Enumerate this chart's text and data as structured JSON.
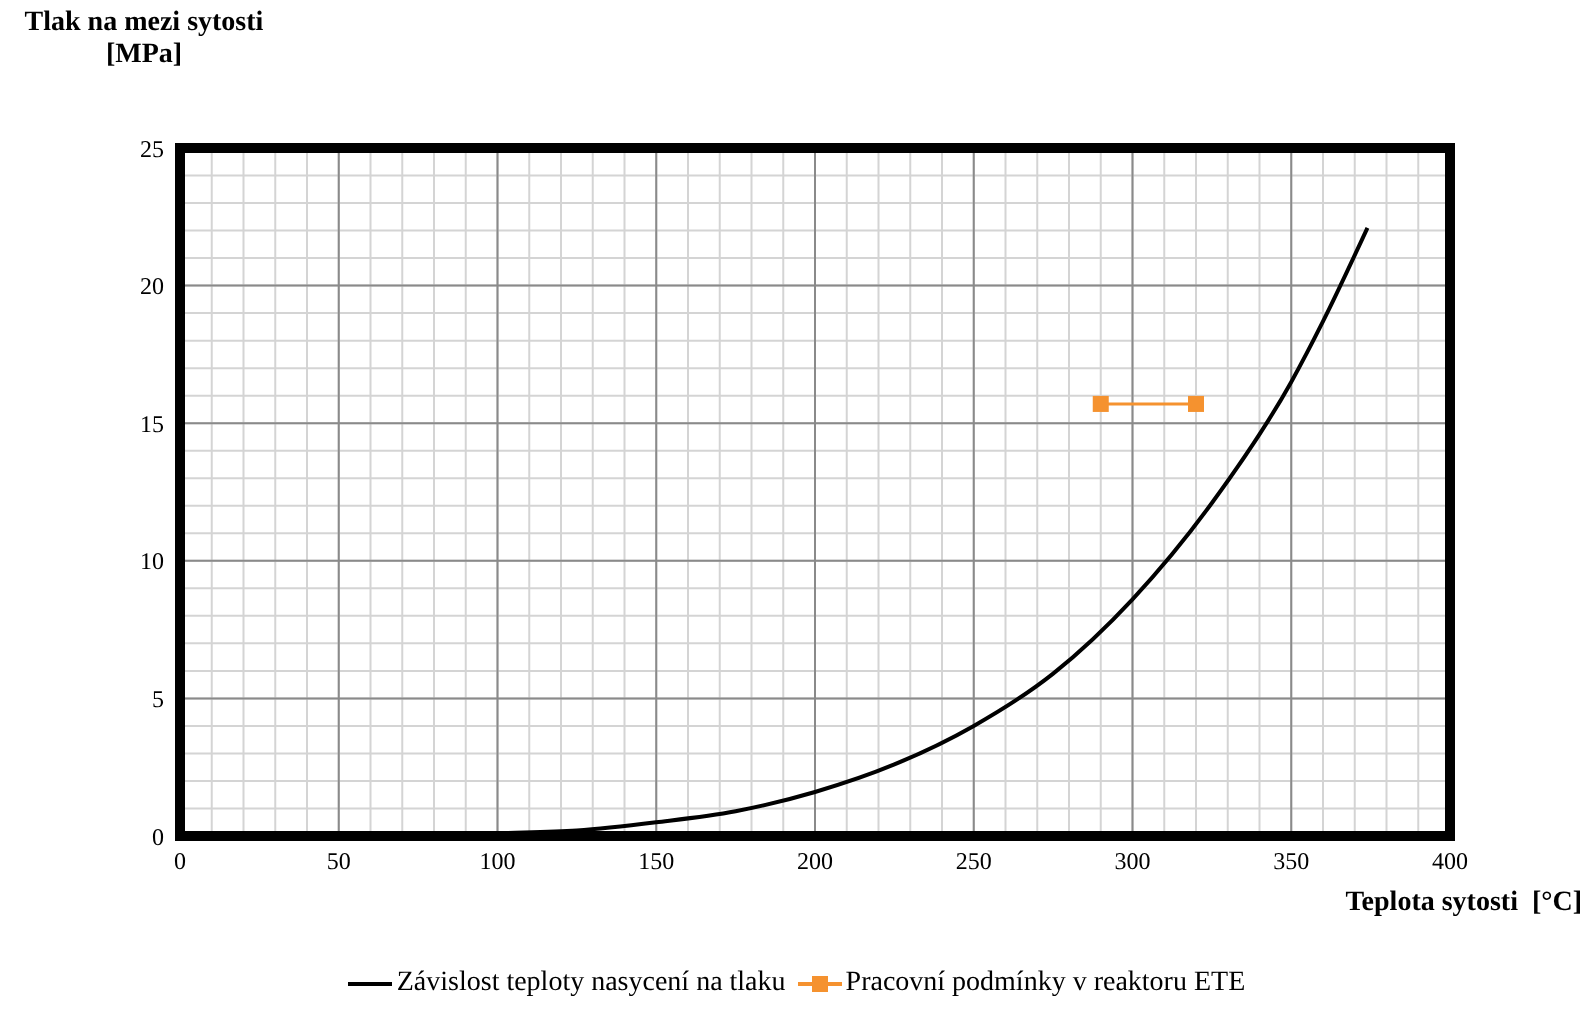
{
  "chart_data": {
    "type": "line",
    "xlabel": "Teplota sytosti  [°C]",
    "ylabel": "Tlak na mezi sytosti [MPa]",
    "xlim": [
      0,
      400
    ],
    "ylim": [
      0,
      25
    ],
    "xticks": [
      0,
      {
        "value": 10,
        "label": null
      },
      {
        "value": 20,
        "label": null
      },
      {
        "value": 30,
        "label": null
      },
      {
        "value": 40,
        "label": null
      },
      50,
      {
        "value": 60,
        "label": null
      },
      {
        "value": 70,
        "label": null
      },
      {
        "value": 80,
        "label": null
      },
      {
        "value": 90,
        "label": null
      },
      100,
      {
        "value": 110,
        "label": null
      },
      {
        "value": 120,
        "label": null
      },
      {
        "value": 130,
        "label": null
      },
      {
        "value": 140,
        "label": null
      },
      150,
      {
        "value": 160,
        "label": null
      },
      {
        "value": 170,
        "label": null
      },
      {
        "value": 180,
        "label": null
      },
      {
        "value": 190,
        "label": null
      },
      200,
      {
        "value": 210,
        "label": null
      },
      {
        "value": 220,
        "label": null
      },
      {
        "value": 230,
        "label": null
      },
      {
        "value": 240,
        "label": null
      },
      250,
      {
        "value": 260,
        "label": null
      },
      {
        "value": 270,
        "label": null
      },
      {
        "value": 280,
        "label": null
      },
      {
        "value": 290,
        "label": null
      },
      300,
      {
        "value": 310,
        "label": null
      },
      {
        "value": 320,
        "label": null
      },
      {
        "value": 330,
        "label": null
      },
      {
        "value": 340,
        "label": null
      },
      350,
      {
        "value": 360,
        "label": null
      },
      {
        "value": 370,
        "label": null
      },
      {
        "value": 380,
        "label": null
      },
      {
        "value": 390,
        "label": null
      },
      400
    ],
    "yticks": [
      0,
      {
        "value": 1,
        "label": null
      },
      {
        "value": 2,
        "label": null
      },
      {
        "value": 3,
        "label": null
      },
      {
        "value": 4,
        "label": null
      },
      5,
      {
        "value": 6,
        "label": null
      },
      {
        "value": 7,
        "label": null
      },
      {
        "value": 8,
        "label": null
      },
      {
        "value": 9,
        "label": null
      },
      10,
      {
        "value": 11,
        "label": null
      },
      {
        "value": 12,
        "label": null
      },
      {
        "value": 13,
        "label": null
      },
      {
        "value": 14,
        "label": null
      },
      15,
      {
        "value": 16,
        "label": null
      },
      {
        "value": 17,
        "label": null
      },
      {
        "value": 18,
        "label": null
      },
      {
        "value": 19,
        "label": null
      },
      20,
      {
        "value": 21,
        "label": null
      },
      {
        "value": 22,
        "label": null
      },
      {
        "value": 23,
        "label": null
      },
      {
        "value": 24,
        "label": null
      },
      25
    ],
    "grid": true,
    "legend": "bottom",
    "line_style": "solid",
    "series": [
      {
        "name": "Závislost teploty nasycení na tlaku",
        "color": "#000000",
        "marker": "none",
        "x": [
          0,
          25,
          50,
          75,
          100,
          125,
          150,
          175,
          200,
          225,
          250,
          275,
          300,
          325,
          350,
          360,
          374
        ],
        "values": [
          0,
          0,
          0,
          0,
          0.1,
          0.2,
          0.5,
          0.9,
          1.6,
          2.6,
          4,
          5.9,
          8.6,
          12.1,
          16.5,
          18.7,
          22.1
        ]
      },
      {
        "name": "Pracovní podmínky v reaktoru ETE",
        "color": "#f5922f",
        "marker": "square",
        "x": [
          290,
          320
        ],
        "values": [
          15.7,
          15.7
        ]
      }
    ]
  }
}
